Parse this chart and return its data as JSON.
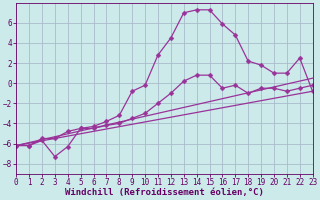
{
  "background_color": "#cceaea",
  "grid_color": "#aabbcc",
  "line_color": "#993399",
  "marker": "D",
  "marker_size": 2.5,
  "xlim": [
    0,
    23
  ],
  "ylim": [
    -9,
    8
  ],
  "xticks": [
    0,
    1,
    2,
    3,
    4,
    5,
    6,
    7,
    8,
    9,
    10,
    11,
    12,
    13,
    14,
    15,
    16,
    17,
    18,
    19,
    20,
    21,
    22,
    23
  ],
  "yticks": [
    -8,
    -6,
    -4,
    -2,
    0,
    2,
    4,
    6
  ],
  "xlabel": "Windchill (Refroidissement éolien,°C)",
  "line1_x": [
    0,
    1,
    2,
    3,
    4,
    5,
    6,
    7,
    8,
    9,
    10,
    11,
    12,
    13,
    14,
    15,
    16,
    17,
    18,
    19,
    20,
    21,
    22,
    23
  ],
  "line1_y": [
    -6.2,
    -6.2,
    -5.7,
    -7.3,
    -6.3,
    -4.5,
    -4.3,
    -3.8,
    -3.2,
    -0.8,
    -0.2,
    2.8,
    4.5,
    7.0,
    7.3,
    7.3,
    5.9,
    4.8,
    2.2,
    1.8,
    1.0,
    1.0,
    2.5,
    -0.8
  ],
  "line2_x": [
    0,
    1,
    2,
    3,
    4,
    5,
    6,
    7,
    8,
    9,
    10,
    11,
    12,
    13,
    14,
    15,
    16,
    17,
    18,
    19,
    20,
    21,
    22,
    23
  ],
  "line2_y": [
    -6.2,
    -6.2,
    -5.5,
    -5.5,
    -4.8,
    -4.5,
    -4.5,
    -4.2,
    -4.0,
    -3.5,
    -3.0,
    -2.0,
    -1.0,
    0.2,
    0.8,
    0.8,
    -0.5,
    -0.2,
    -1.0,
    -0.5,
    -0.5,
    -0.8,
    -0.5,
    -0.2
  ],
  "line3_x": [
    0,
    23
  ],
  "line3_y": [
    -6.2,
    -0.8
  ],
  "line4_x": [
    0,
    23
  ],
  "line4_y": [
    -6.2,
    0.5
  ],
  "tick_fontsize": 5.5,
  "label_fontsize": 6.5,
  "tick_color": "#660066",
  "label_color": "#660066",
  "linewidth": 0.9
}
